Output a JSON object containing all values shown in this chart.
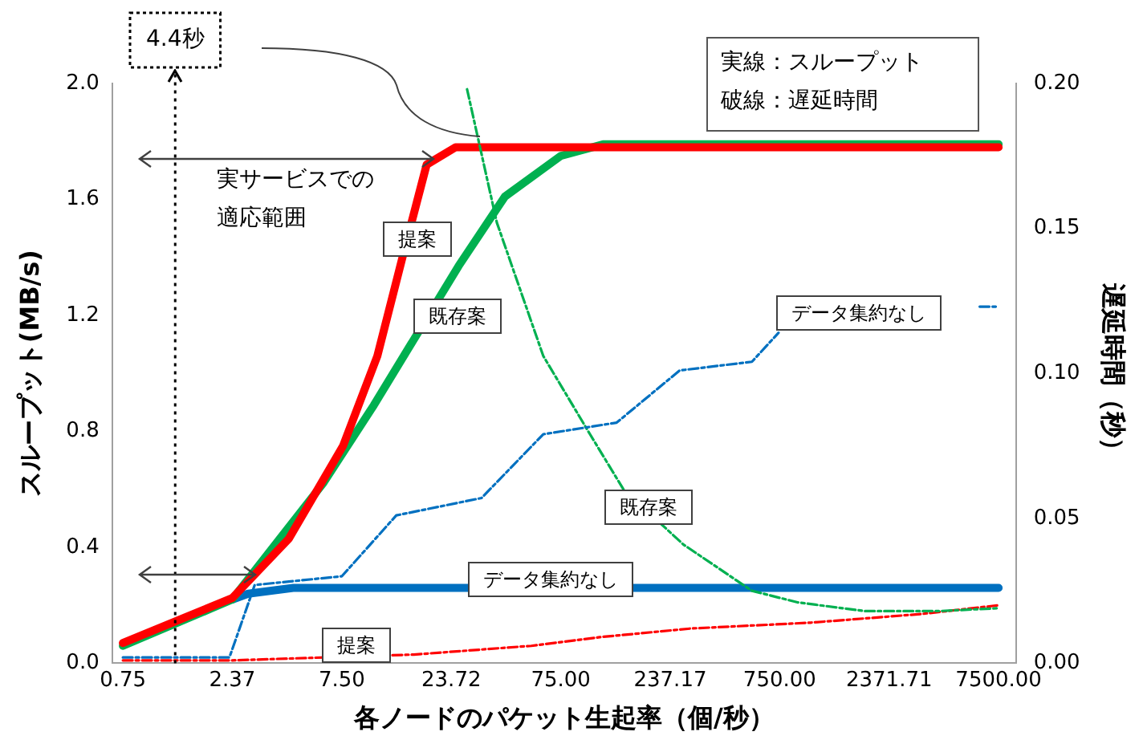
{
  "chart_data": {
    "type": "line",
    "xlabel": "各ノードのパケット生起率（個/秒）",
    "ylabel": "スループット(MB/s)",
    "y2label": "遅延時間（秒）",
    "log": "x",
    "grid": false,
    "legend": false,
    "marker": "none",
    "xlim": [
      0.67,
      9000
    ],
    "xticks": [
      0.75,
      2.37,
      {
        "value": 7.5,
        "label": "7.50"
      },
      23.72,
      {
        "value": 75,
        "label": "75.00"
      },
      237.17,
      {
        "value": 750,
        "label": "750.00"
      },
      2371.71,
      {
        "value": 7500,
        "label": "7500.00"
      }
    ],
    "ylim": [
      0,
      2
    ],
    "yticks": [
      {
        "value": 0,
        "label": "0.0"
      },
      0.4,
      0.8,
      1.2,
      1.6,
      {
        "value": 2,
        "label": "2.0"
      }
    ],
    "y2lim": [
      0,
      0.2
    ],
    "y2ticks": [
      {
        "value": 0,
        "label": "0.00"
      },
      0.05,
      {
        "value": 0.1,
        "label": "0.10"
      },
      0.15,
      {
        "value": 0.2,
        "label": "0.20"
      }
    ],
    "series": [
      {
        "name": "提案",
        "color": "#ff0000",
        "line_style": "solid",
        "x": [
          0.75,
          2.37,
          4.3,
          7.6,
          10.9,
          14.3,
          18.3,
          24.8,
          7500
        ],
        "values": [
          0.07,
          0.225,
          0.43,
          0.75,
          1.06,
          1.41,
          1.72,
          1.78,
          1.78
        ]
      },
      {
        "name": "既存案",
        "color": "#00b050",
        "line_style": "solid",
        "x": [
          0.75,
          2.37,
          6.15,
          10.5,
          25.6,
          41.7,
          75,
          117,
          7500
        ],
        "values": [
          0.06,
          0.22,
          0.62,
          0.89,
          1.37,
          1.61,
          1.75,
          1.79,
          1.79
        ]
      },
      {
        "name": "データ集約なし",
        "color": "#0070c0",
        "line_style": "solid",
        "x": [
          2.37,
          2.8,
          4.5,
          7500
        ],
        "values": [
          0.22,
          0.24,
          0.26,
          0.26
        ]
      },
      {
        "name": "提案",
        "color": "#ff0000",
        "line_style": "dashed",
        "axis": "y2",
        "x": [
          0.75,
          2.37,
          16,
          55,
          113,
          296,
          1038,
          3341,
          7500
        ],
        "values": [
          0.001,
          0.001,
          0.003,
          0.006,
          0.009,
          0.012,
          0.014,
          0.017,
          0.02
        ]
      },
      {
        "name": "既存案",
        "color": "#00b050",
        "line_style": "dashed",
        "axis": "y2",
        "x": [
          28,
          38.3,
          62.4,
          102,
          145,
          272,
          560,
          905,
          1830,
          4030,
          7500
        ],
        "values": [
          0.198,
          0.152,
          0.106,
          0.079,
          0.06,
          0.041,
          0.025,
          0.021,
          0.018,
          0.018,
          0.019
        ]
      },
      {
        "name": "データ集約なし",
        "color": "#0070c0",
        "line_style": "dashed",
        "axis": "y2",
        "x": [
          0.75,
          2.3,
          3.0,
          7.5,
          13.3,
          32.6,
          62.4,
          135,
          262,
          560,
          741,
          2000,
          6147,
          7500
        ],
        "values": [
          0.002,
          0.002,
          0.027,
          0.03,
          0.051,
          0.057,
          0.079,
          0.083,
          0.101,
          0.104,
          0.114,
          null,
          0.123,
          0.123
        ]
      }
    ],
    "ref_lines": [
      {
        "axis": "x",
        "value": 1.3,
        "label": "4.4秒",
        "line_style": "dotted"
      }
    ],
    "annotations": [
      "実サービスでの",
      "適応範囲",
      "実線：スループット",
      "破線：遅延時間"
    ]
  }
}
